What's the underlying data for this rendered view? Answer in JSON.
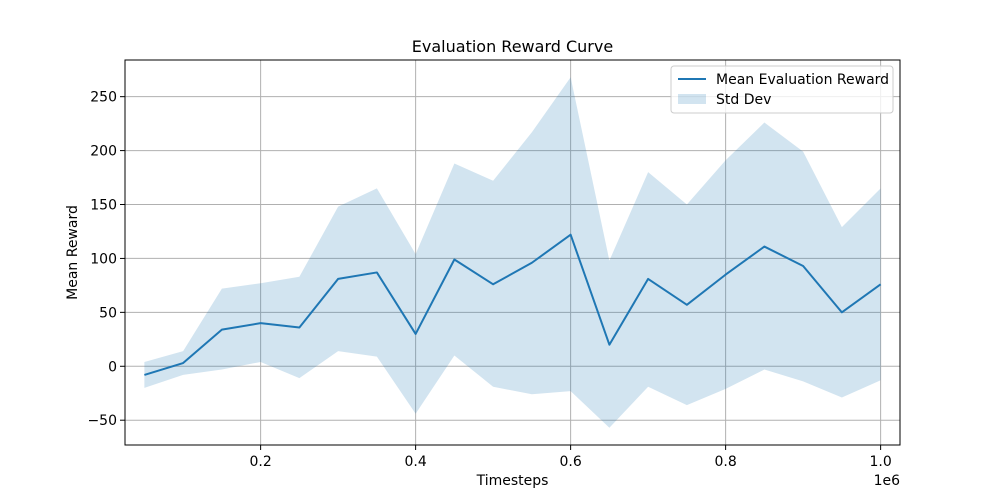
{
  "chart_data": {
    "type": "line",
    "title": "Evaluation Reward Curve",
    "xlabel": "Timesteps",
    "ylabel": "Mean Reward",
    "x_offset_label": "1e6",
    "x_scale": 1000000,
    "xlim": [
      0.025,
      1.025
    ],
    "ylim": [
      -73,
      284
    ],
    "x_ticks": [
      0.2,
      0.4,
      0.6,
      0.8,
      1.0
    ],
    "x_tick_labels": [
      "0.2",
      "0.4",
      "0.6",
      "0.8",
      "1.0"
    ],
    "y_ticks": [
      -50,
      0,
      50,
      100,
      150,
      200,
      250
    ],
    "y_tick_labels": [
      "−50",
      "0",
      "50",
      "100",
      "150",
      "200",
      "250"
    ],
    "grid": true,
    "legend_position": "upper right",
    "x": [
      0.05,
      0.1,
      0.15,
      0.2,
      0.25,
      0.3,
      0.35,
      0.4,
      0.45,
      0.5,
      0.55,
      0.6,
      0.65,
      0.7,
      0.75,
      0.8,
      0.85,
      0.9,
      0.95,
      1.0
    ],
    "series": [
      {
        "name": "Mean Evaluation Reward",
        "kind": "line",
        "color": "#1f77b4",
        "values": [
          -8,
          3,
          34,
          40,
          36,
          81,
          87,
          30,
          99,
          76,
          96,
          122,
          20,
          81,
          57,
          85,
          111,
          93,
          50,
          76
        ]
      },
      {
        "name": "Std Dev",
        "kind": "band",
        "color": "#1f77b4",
        "opacity": 0.2,
        "upper": [
          4,
          14,
          72,
          77,
          83,
          148,
          165,
          104,
          188,
          172,
          217,
          268,
          98,
          180,
          150,
          191,
          226,
          199,
          129,
          165
        ],
        "lower": [
          -20,
          -8,
          -3,
          4,
          -11,
          14,
          9,
          -44,
          10,
          -19,
          -26,
          -23,
          -57,
          -19,
          -36,
          -21,
          -3,
          -14,
          -29,
          -13
        ]
      }
    ]
  }
}
